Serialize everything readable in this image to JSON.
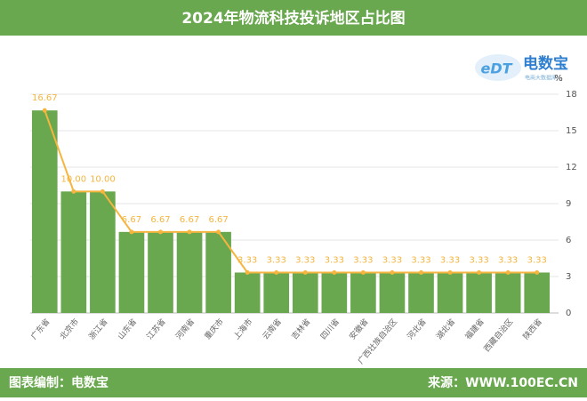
{
  "chart_data": {
    "type": "bar",
    "title": "2024年物流科技投诉地区占比图",
    "categories": [
      "广东省",
      "北京市",
      "浙江省",
      "山东省",
      "江苏省",
      "河南省",
      "重庆市",
      "上海市",
      "云南省",
      "吉林省",
      "四川省",
      "安徽省",
      "广西壮族自治区",
      "河北省",
      "湖北省",
      "福建省",
      "西藏自治区",
      "陕西省"
    ],
    "values": [
      16.67,
      10,
      10,
      6.67,
      6.67,
      6.67,
      6.67,
      3.33,
      3.33,
      3.33,
      3.33,
      3.33,
      3.33,
      3.33,
      3.33,
      3.33,
      3.33,
      3.33
    ],
    "value_labels": [
      "16.67",
      "10.00",
      "10.00",
      "6.67",
      "6.67",
      "6.67",
      "6.67",
      "3.33",
      "3.33",
      "3.33",
      "3.33",
      "3.33",
      "3.33",
      "3.33",
      "3.33",
      "3.33",
      "3.33",
      "3.33"
    ],
    "color": "#6aa84f",
    "line_color": "#f5b53f",
    "line": true,
    "ylim": [
      0,
      18
    ],
    "yticks": [
      0,
      3,
      6,
      9,
      12,
      15,
      18
    ],
    "y_unit": "%",
    "grid": true
  },
  "logo": {
    "mark": "eDT",
    "name": "电数宝",
    "tagline": "电商大数据库"
  },
  "footer": {
    "left": "图表编制：电数宝",
    "right": "来源：WWW.100EC.CN"
  }
}
